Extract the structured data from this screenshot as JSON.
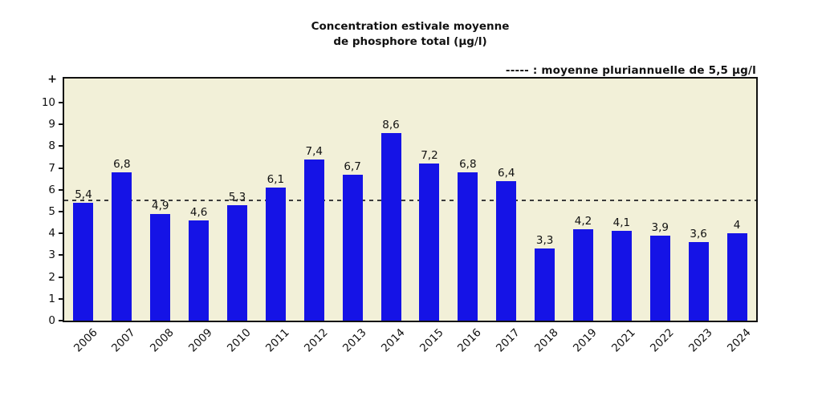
{
  "title": {
    "line1": "Concentration estivale moyenne",
    "line2": "de phosphore total (µg/l)"
  },
  "legend": {
    "text": "----- : moyenne pluriannuelle de 5,5 µg/l"
  },
  "y_axis": {
    "top_symbol": "+",
    "ticks": [
      10,
      9,
      8,
      7,
      6,
      5,
      4,
      3,
      2,
      1,
      0
    ]
  },
  "chart_data": {
    "type": "bar",
    "title": "Concentration estivale moyenne de phosphore total (µg/l)",
    "categories": [
      "2006",
      "2007",
      "2008",
      "2009",
      "2010",
      "2011",
      "2012",
      "2013",
      "2014",
      "2015",
      "2016",
      "2017",
      "2018",
      "2019",
      "2021",
      "2022",
      "2023",
      "2024"
    ],
    "values": [
      5.4,
      6.8,
      4.9,
      4.6,
      5.3,
      6.1,
      7.4,
      6.7,
      8.6,
      7.2,
      6.8,
      6.4,
      3.3,
      4.2,
      4.1,
      3.9,
      3.6,
      4
    ],
    "value_labels": [
      "5,4",
      "6,8",
      "4,9",
      "4,6",
      "5,3",
      "6,1",
      "7,4",
      "6,7",
      "8,6",
      "7,2",
      "6,8",
      "6,4",
      "3,3",
      "4,2",
      "4,1",
      "3,9",
      "3,6",
      "4"
    ],
    "reference_line": {
      "value": 5.5,
      "label": "moyenne pluriannuelle de 5,5 µg/l"
    },
    "xlabel": "",
    "ylabel": "",
    "ylim": [
      0,
      11.1
    ],
    "grid": false,
    "legend_position": "top-right",
    "colors": {
      "bar": "#1513e6",
      "plot_background": "#f2f0d8",
      "reference_line": "#3c3c3c",
      "frame": "#111111",
      "text": "#1a1a1a"
    }
  }
}
